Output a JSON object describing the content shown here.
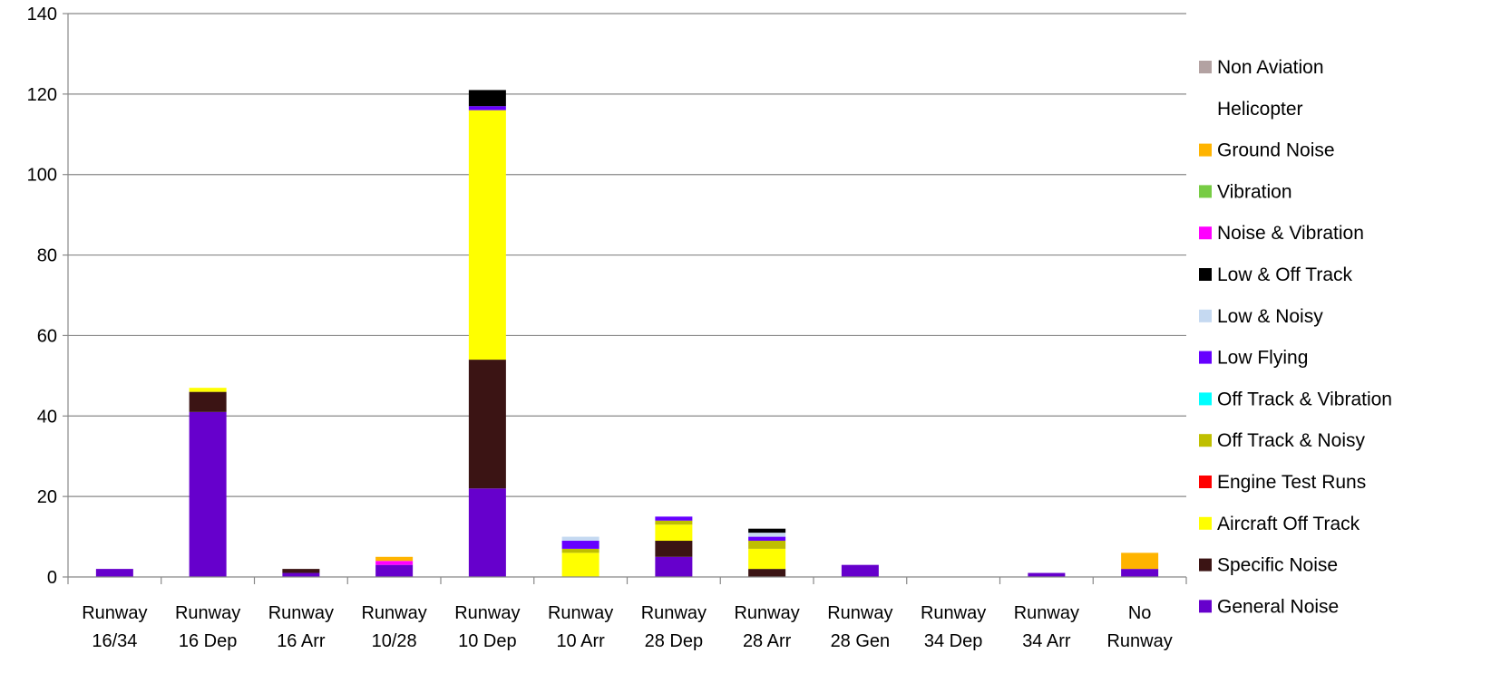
{
  "chart_data": {
    "type": "bar",
    "stacked": true,
    "title": "",
    "xlabel": "",
    "ylabel": "",
    "ylim": [
      0,
      140
    ],
    "yticks": [
      0,
      20,
      40,
      60,
      80,
      100,
      120,
      140
    ],
    "grid": true,
    "legend_position": "right",
    "categories": [
      [
        "Runway",
        "16/34"
      ],
      [
        "Runway",
        "16 Dep"
      ],
      [
        "Runway",
        "16 Arr"
      ],
      [
        "Runway",
        "10/28"
      ],
      [
        "Runway",
        "10 Dep"
      ],
      [
        "Runway",
        "10 Arr"
      ],
      [
        "Runway",
        "28 Dep"
      ],
      [
        "Runway",
        "28 Arr"
      ],
      [
        "Runway",
        "28 Gen"
      ],
      [
        "Runway",
        "34 Dep"
      ],
      [
        "Runway",
        "34 Arr"
      ],
      [
        "No",
        "Runway"
      ]
    ],
    "series": [
      {
        "name": "General Noise",
        "color": "#6600CC",
        "values": [
          2,
          41,
          1,
          3,
          22,
          0,
          5,
          0,
          3,
          0,
          1,
          2
        ]
      },
      {
        "name": "Specific Noise",
        "color": "#3B1414",
        "values": [
          0,
          5,
          1,
          0,
          32,
          0,
          4,
          2,
          0,
          0,
          0,
          0
        ]
      },
      {
        "name": "Aircraft Off Track",
        "color": "#FFFF00",
        "values": [
          0,
          1,
          0,
          0,
          62,
          6,
          4,
          5,
          0,
          0,
          0,
          0
        ]
      },
      {
        "name": "Engine Test Runs",
        "color": "#FF0000",
        "values": [
          0,
          0,
          0,
          0,
          0,
          0,
          0,
          0,
          0,
          0,
          0,
          0
        ]
      },
      {
        "name": "Off Track & Noisy",
        "color": "#BFBF00",
        "values": [
          0,
          0,
          0,
          0,
          0,
          1,
          1,
          2,
          0,
          0,
          0,
          0
        ]
      },
      {
        "name": "Off Track & Vibration",
        "color": "#00FFFF",
        "values": [
          0,
          0,
          0,
          0,
          0,
          0,
          0,
          0,
          0,
          0,
          0,
          0
        ]
      },
      {
        "name": "Low Flying",
        "color": "#6600FF",
        "values": [
          0,
          0,
          0,
          0,
          1,
          2,
          1,
          1,
          0,
          0,
          0,
          0
        ]
      },
      {
        "name": "Low & Noisy",
        "color": "#C5D9F1",
        "values": [
          0,
          0,
          0,
          0,
          0,
          1,
          0,
          1,
          0,
          0,
          0,
          0
        ]
      },
      {
        "name": "Low & Off Track",
        "color": "#000000",
        "values": [
          0,
          0,
          0,
          0,
          4,
          0,
          0,
          1,
          0,
          0,
          0,
          0
        ]
      },
      {
        "name": "Noise & Vibration",
        "color": "#FF00FF",
        "values": [
          0,
          0,
          0,
          1,
          0,
          0,
          0,
          0,
          0,
          0,
          0,
          0
        ]
      },
      {
        "name": "Vibration",
        "color": "#77CC44",
        "values": [
          0,
          0,
          0,
          0,
          0,
          0,
          0,
          0,
          0,
          0,
          0,
          0
        ]
      },
      {
        "name": "Ground Noise",
        "color": "#FFB400",
        "values": [
          0,
          0,
          0,
          1,
          0,
          0,
          0,
          0,
          0,
          0,
          0,
          4
        ]
      },
      {
        "name": "Helicopter",
        "color": "#FFFFFF",
        "values": [
          0,
          0,
          0,
          0,
          0,
          0,
          0,
          0,
          0,
          0,
          0,
          0
        ]
      },
      {
        "name": "Non Aviation",
        "color": "#B3A2A2",
        "values": [
          0,
          0,
          0,
          0,
          0,
          0,
          0,
          0,
          0,
          0,
          0,
          0
        ]
      }
    ]
  }
}
